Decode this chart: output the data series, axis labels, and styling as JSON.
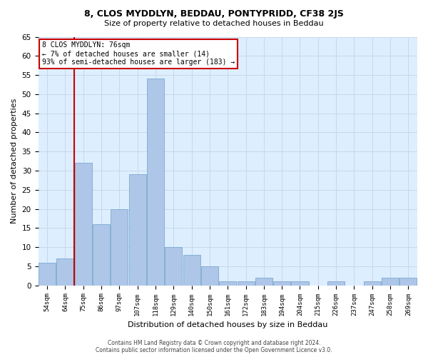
{
  "title": "8, CLOS MYDDLYN, BEDDAU, PONTYPRIDD, CF38 2JS",
  "subtitle": "Size of property relative to detached houses in Beddau",
  "xlabel": "Distribution of detached houses by size in Beddau",
  "ylabel": "Number of detached properties",
  "categories": [
    "54sqm",
    "64sqm",
    "75sqm",
    "86sqm",
    "97sqm",
    "107sqm",
    "118sqm",
    "129sqm",
    "140sqm",
    "150sqm",
    "161sqm",
    "172sqm",
    "183sqm",
    "194sqm",
    "204sqm",
    "215sqm",
    "226sqm",
    "237sqm",
    "247sqm",
    "258sqm",
    "269sqm"
  ],
  "values": [
    6,
    7,
    32,
    16,
    20,
    29,
    54,
    10,
    8,
    5,
    1,
    1,
    2,
    1,
    1,
    0,
    1,
    0,
    1,
    2,
    2
  ],
  "bar_color": "#aec6e8",
  "bar_edge_color": "#7aaad0",
  "vline_x": 1.5,
  "annotation_title": "8 CLOS MYDDLYN: 76sqm",
  "annotation_line1": "← 7% of detached houses are smaller (14)",
  "annotation_line2": "93% of semi-detached houses are larger (183) →",
  "annotation_box_facecolor": "#ffffff",
  "annotation_box_edgecolor": "#cc0000",
  "vline_color": "#cc0000",
  "grid_color": "#c8d8e8",
  "background_color": "#ddeeff",
  "ylim": [
    0,
    65
  ],
  "yticks": [
    0,
    5,
    10,
    15,
    20,
    25,
    30,
    35,
    40,
    45,
    50,
    55,
    60,
    65
  ],
  "footer_line1": "Contains HM Land Registry data © Crown copyright and database right 2024.",
  "footer_line2": "Contains public sector information licensed under the Open Government Licence v3.0."
}
